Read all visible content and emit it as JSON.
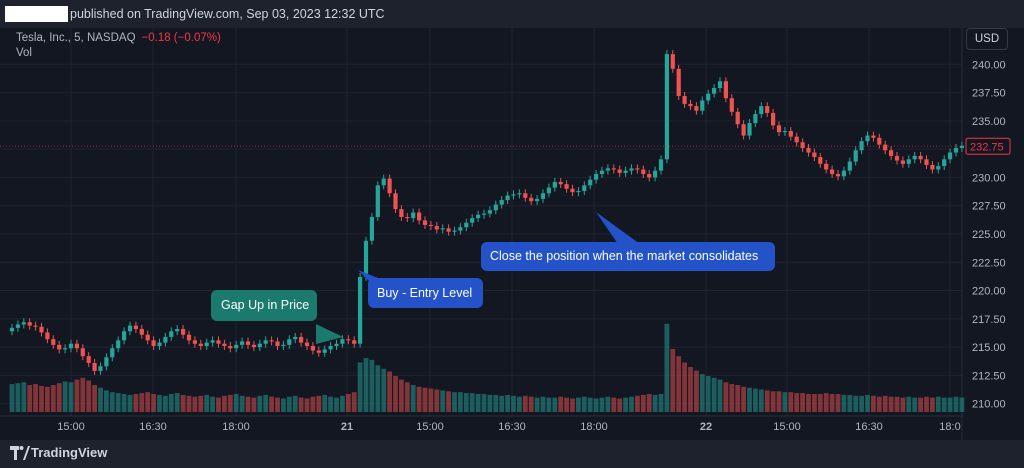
{
  "header": {
    "published_text": "published on TradingView.com, Sep 03, 2023 12:32 UTC"
  },
  "symbol": {
    "name": "Tesla, Inc., 5, NASDAQ",
    "change": "−0.18 (−0.07%)",
    "volume_label": "Vol"
  },
  "currency_button": "USD",
  "footer": {
    "brand": "TradingView"
  },
  "annotations": {
    "gap_up": "Gap Up in Price",
    "buy": "Buy - Entry Level",
    "close": "Close the position when the market consolidates"
  },
  "colors": {
    "up": "#26a69a",
    "down": "#ef5350",
    "callout_blue": "#2352c9",
    "callout_green": "#1a7a6e",
    "price_label": "#f23645"
  },
  "chart_data": {
    "type": "candlestick",
    "title": "Tesla, Inc., 5, NASDAQ",
    "ylim": [
      209,
      242.5
    ],
    "y_ticks": [
      "240.00",
      "237.50",
      "235.00",
      "232.50",
      "230.00",
      "227.50",
      "225.00",
      "222.50",
      "220.00",
      "217.50",
      "215.00",
      "212.50",
      "210.00"
    ],
    "x_ticks": [
      "15:00",
      "16:30",
      "18:00",
      "21",
      "15:00",
      "16:30",
      "18:00",
      "22",
      "15:00",
      "16:30",
      "18:0"
    ],
    "last_price": "232.75",
    "series": [
      {
        "name": "price",
        "close": [
          216.7,
          217.0,
          217.2,
          216.9,
          216.8,
          216.3,
          215.7,
          215.2,
          214.8,
          214.9,
          215.3,
          214.9,
          214.2,
          213.6,
          212.9,
          213.3,
          214.1,
          214.9,
          215.6,
          216.4,
          216.9,
          216.6,
          216.1,
          215.6,
          215.1,
          215.4,
          215.9,
          216.4,
          216.6,
          216.1,
          215.6,
          215.3,
          215.1,
          215.4,
          215.6,
          215.3,
          215.1,
          214.9,
          215.2,
          215.5,
          215.2,
          215.0,
          215.3,
          215.6,
          215.5,
          215.1,
          215.2,
          215.7,
          215.9,
          215.4,
          215.1,
          214.7,
          214.5,
          214.8,
          215.1,
          215.3,
          215.7,
          215.6,
          215.3,
          221.2,
          224.4,
          226.5,
          229.3,
          229.9,
          228.6,
          227.2,
          226.5,
          226.4,
          226.9,
          226.2,
          225.8,
          225.7,
          225.4,
          225.5,
          225.2,
          225.3,
          225.6,
          226.0,
          226.4,
          226.7,
          226.8,
          227.1,
          227.6,
          228.0,
          228.4,
          228.5,
          228.6,
          228.2,
          227.9,
          228.1,
          228.6,
          229.1,
          229.6,
          229.4,
          229.0,
          228.7,
          228.8,
          229.3,
          229.8,
          230.3,
          230.6,
          230.8,
          230.7,
          230.4,
          230.6,
          230.8,
          230.7,
          230.3,
          230.0,
          230.6,
          231.6,
          240.9,
          239.6,
          237.2,
          236.5,
          236.3,
          235.9,
          236.8,
          237.4,
          237.9,
          238.5,
          237.0,
          235.8,
          234.7,
          233.7,
          234.8,
          235.6,
          236.3,
          235.7,
          234.6,
          234.0,
          234.1,
          233.6,
          233.1,
          232.6,
          232.2,
          231.8,
          231.2,
          230.7,
          230.3,
          230.1,
          230.6,
          231.4,
          232.4,
          233.2,
          233.7,
          233.5,
          232.9,
          232.4,
          231.9,
          231.5,
          231.2,
          231.6,
          231.9,
          231.6,
          231.1,
          230.7,
          231.0,
          231.6,
          232.2,
          232.6,
          232.8
        ]
      },
      {
        "name": "volume",
        "values": [
          0.31,
          0.32,
          0.33,
          0.3,
          0.31,
          0.29,
          0.28,
          0.3,
          0.32,
          0.34,
          0.33,
          0.36,
          0.38,
          0.35,
          0.3,
          0.27,
          0.24,
          0.22,
          0.21,
          0.2,
          0.19,
          0.2,
          0.21,
          0.22,
          0.2,
          0.19,
          0.18,
          0.2,
          0.21,
          0.19,
          0.18,
          0.17,
          0.18,
          0.19,
          0.17,
          0.16,
          0.18,
          0.19,
          0.2,
          0.18,
          0.17,
          0.16,
          0.18,
          0.19,
          0.17,
          0.16,
          0.15,
          0.17,
          0.18,
          0.16,
          0.15,
          0.17,
          0.18,
          0.19,
          0.17,
          0.16,
          0.18,
          0.2,
          0.22,
          0.55,
          0.6,
          0.58,
          0.52,
          0.48,
          0.45,
          0.4,
          0.36,
          0.33,
          0.3,
          0.28,
          0.27,
          0.26,
          0.25,
          0.24,
          0.23,
          0.22,
          0.22,
          0.21,
          0.21,
          0.2,
          0.2,
          0.19,
          0.19,
          0.18,
          0.19,
          0.18,
          0.17,
          0.18,
          0.17,
          0.16,
          0.17,
          0.16,
          0.16,
          0.17,
          0.16,
          0.15,
          0.16,
          0.17,
          0.16,
          0.15,
          0.16,
          0.17,
          0.16,
          0.15,
          0.16,
          0.17,
          0.18,
          0.19,
          0.2,
          0.19,
          0.2,
          0.98,
          0.7,
          0.62,
          0.55,
          0.5,
          0.46,
          0.42,
          0.4,
          0.38,
          0.36,
          0.33,
          0.31,
          0.3,
          0.28,
          0.27,
          0.26,
          0.25,
          0.24,
          0.23,
          0.23,
          0.22,
          0.22,
          0.21,
          0.21,
          0.2,
          0.2,
          0.2,
          0.21,
          0.2,
          0.2,
          0.19,
          0.19,
          0.18,
          0.18,
          0.19,
          0.18,
          0.17,
          0.18,
          0.17,
          0.17,
          0.16,
          0.17,
          0.16,
          0.16,
          0.17,
          0.16,
          0.17,
          0.16,
          0.16,
          0.17,
          0.16
        ]
      }
    ]
  }
}
